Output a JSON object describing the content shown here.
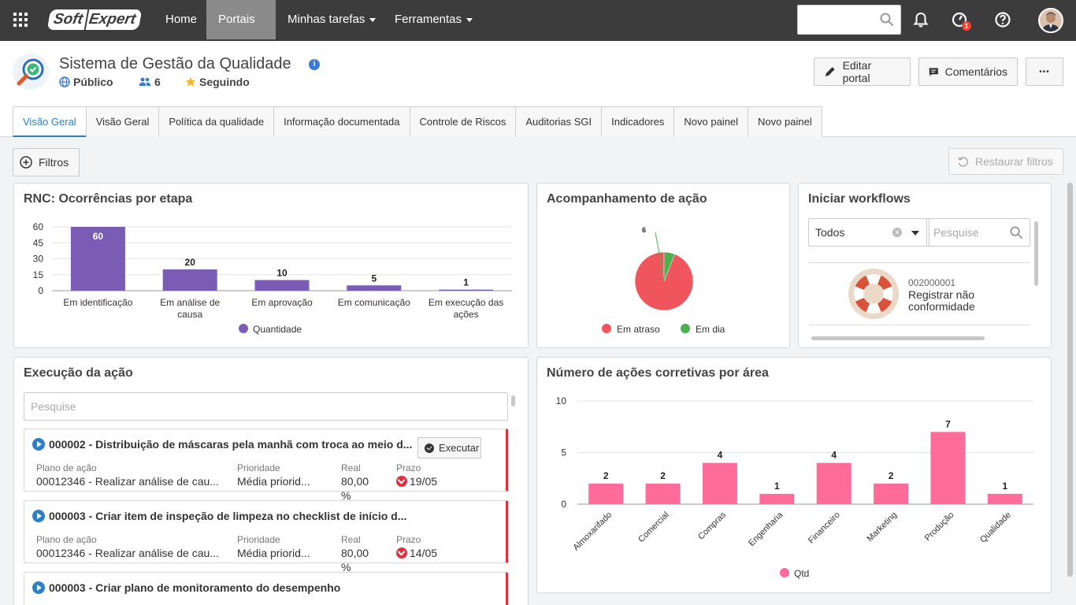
{
  "nav": {
    "logo_soft": "Soft",
    "logo_expert": "Expert",
    "items": [
      {
        "label": "Home"
      },
      {
        "label": "Portais"
      },
      {
        "label": "Minhas tarefas"
      },
      {
        "label": "Ferramentas"
      }
    ],
    "notification_badge": "1"
  },
  "header": {
    "title": "Sistema de Gestão da Qualidade",
    "visibility": "Público",
    "members": "6",
    "following": "Seguindo",
    "edit_label": "Editar portal",
    "comments_label": "Comentários",
    "more_label": "•••"
  },
  "tabs": [
    {
      "label": "Visão Geral"
    },
    {
      "label": "Visão Geral"
    },
    {
      "label": "Política da qualidade"
    },
    {
      "label": "Informação documentada"
    },
    {
      "label": "Controle de Riscos"
    },
    {
      "label": "Auditorias SGI"
    },
    {
      "label": "Indicadores"
    },
    {
      "label": "Novo painel"
    },
    {
      "label": "Novo painel"
    }
  ],
  "filters": {
    "label": "Filtros",
    "restore_label": "Restaurar filtros"
  },
  "rnc": {
    "title": "RNC: Ocorrências por etapa",
    "chart_data": {
      "type": "bar",
      "categories": [
        [
          "Em identificação"
        ],
        [
          "Em análise de",
          "causa"
        ],
        [
          "Em aprovação"
        ],
        [
          "Em comunicação"
        ],
        [
          "Em execução das",
          "ações"
        ]
      ],
      "series": [
        {
          "name": "Quantidade",
          "values": [
            60,
            20,
            10,
            5,
            1
          ]
        }
      ],
      "yticks": [
        0,
        15,
        30,
        45,
        60
      ],
      "ylim": [
        0,
        60
      ],
      "color": "#7b5cb5",
      "legend": "bottom"
    }
  },
  "acomp": {
    "title": "Acompanhamento de ação",
    "chart_data": {
      "type": "pie",
      "slices": [
        {
          "name": "Em atraso",
          "value": 94,
          "color": "#f0545c"
        },
        {
          "name": "Em dia",
          "value": 6,
          "color": "#4caf50"
        }
      ],
      "data_label": "6",
      "legend": "bottom"
    }
  },
  "workflows": {
    "title": "Iniciar workflows",
    "select_value": "Todos",
    "search_placeholder": "Pesquise",
    "item_code": "002000001",
    "item_name": "Registrar não conformidade"
  },
  "execucao": {
    "title": "Execução da ação",
    "search_placeholder": "Pesquise",
    "execute_label": "Executar",
    "items": [
      {
        "title": "000002 - Distribuição de máscaras pela manhã com troca ao meio d...",
        "plano_label": "Plano de ação",
        "plano": "00012346 - Realizar análise de cau...",
        "prio_label": "Prioridade",
        "prio": "Média priorid...",
        "real_label": "Real",
        "real": "80,00",
        "real_unit": "%",
        "prazo_label": "Prazo",
        "prazo": "19/05"
      },
      {
        "title": "000003 - Criar item de inspeção de limpeza no checklist de início d...",
        "plano_label": "Plano de ação",
        "plano": "00012346 - Realizar análise de cau...",
        "prio_label": "Prioridade",
        "prio": "Média priorid...",
        "real_label": "Real",
        "real": "80,00",
        "real_unit": "%",
        "prazo_label": "Prazo",
        "prazo": "14/05"
      },
      {
        "title": "000003 - Criar plano de monitoramento do desempenho"
      }
    ]
  },
  "corretivas": {
    "title": "Número de ações corretivas por área",
    "chart_data": {
      "type": "bar",
      "categories": [
        "Almoxarifado",
        "Comercial",
        "Compras",
        "Engenharia",
        "Financeiro",
        "Marketing",
        "Produção",
        "Qualidade"
      ],
      "series": [
        {
          "name": "Qtd",
          "values": [
            2,
            2,
            4,
            1,
            4,
            2,
            7,
            1
          ]
        }
      ],
      "yticks": [
        0,
        5,
        10
      ],
      "ylim": [
        0,
        10
      ],
      "color": "#ff6b9a",
      "legend": "bottom"
    }
  }
}
